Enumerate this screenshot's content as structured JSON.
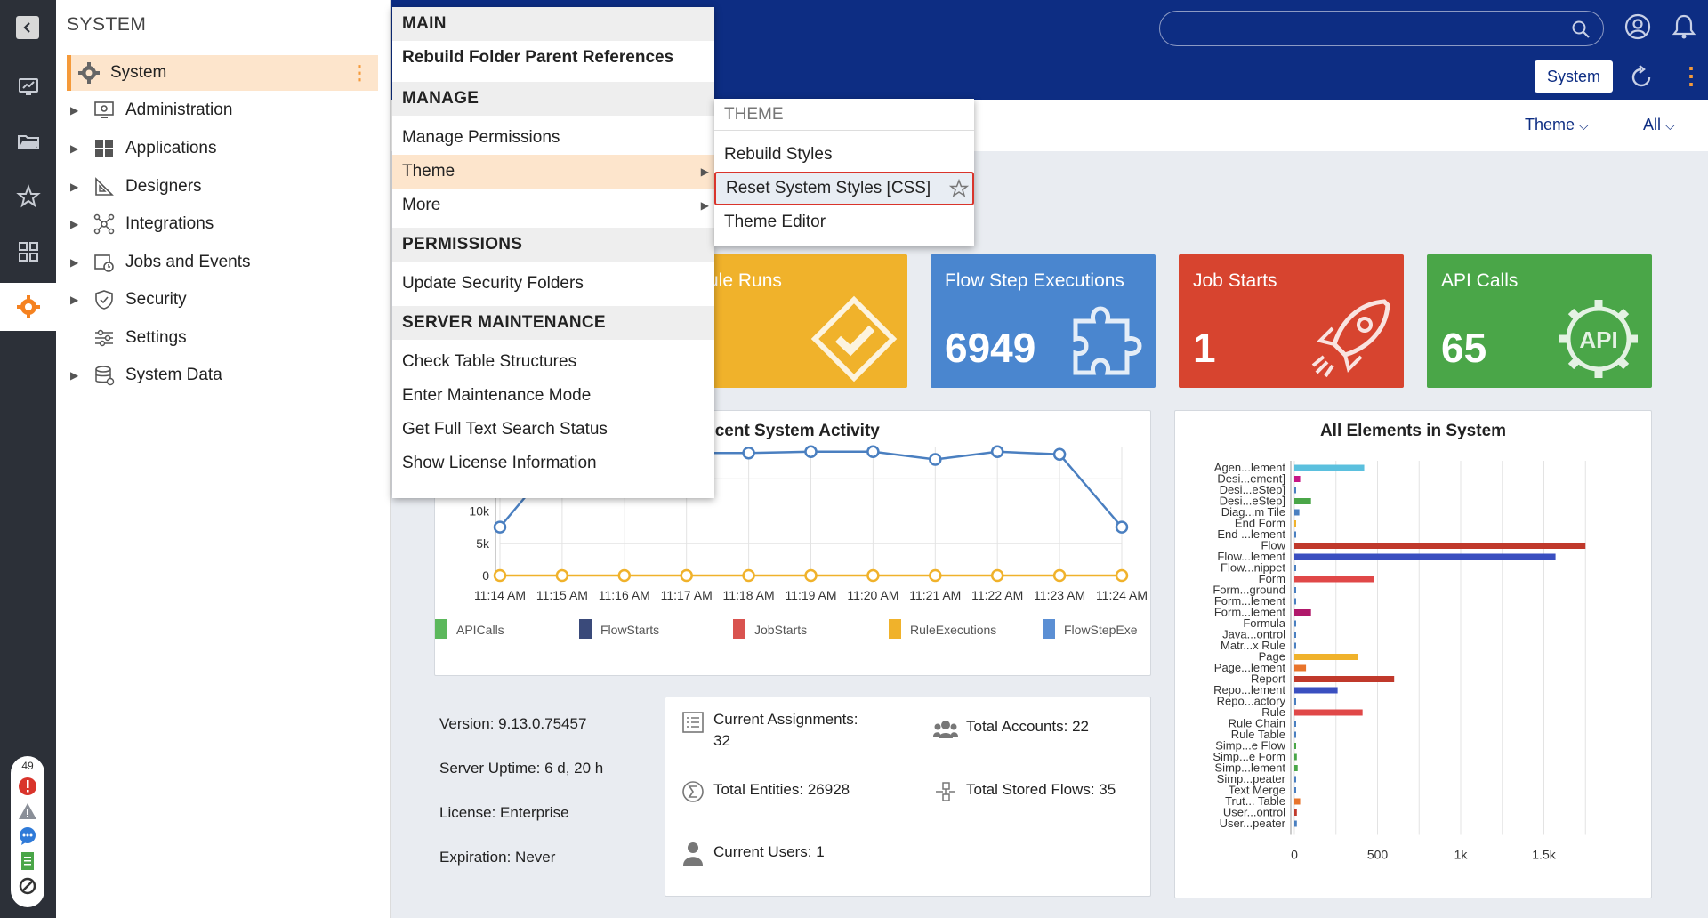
{
  "rail": {
    "status_count": "49"
  },
  "tree": {
    "title": "SYSTEM",
    "items": [
      {
        "label": "System"
      },
      {
        "label": "Administration"
      },
      {
        "label": "Applications"
      },
      {
        "label": "Designers"
      },
      {
        "label": "Integrations"
      },
      {
        "label": "Jobs and Events"
      },
      {
        "label": "Security"
      },
      {
        "label": "Settings"
      },
      {
        "label": "System Data"
      }
    ]
  },
  "header": {
    "search_placeholder": "",
    "system_button": "System",
    "theme_dropdown": "Theme",
    "all_dropdown": "All"
  },
  "context_menu": {
    "sections": [
      {
        "header": "MAIN",
        "items": [
          "Rebuild Folder Parent References"
        ]
      },
      {
        "header": "MANAGE",
        "items": [
          "Manage Permissions",
          "Theme",
          "More"
        ]
      },
      {
        "header": "PERMISSIONS",
        "items": [
          "Update Security Folders"
        ]
      },
      {
        "header": "SERVER MAINTENANCE",
        "items": [
          "Check Table Structures",
          "Enter Maintenance Mode",
          "Get Full Text Search Status",
          "Show License Information"
        ]
      }
    ]
  },
  "theme_submenu": {
    "header": "THEME",
    "items": [
      "Rebuild Styles",
      "Reset System Styles [CSS]",
      "Theme Editor"
    ]
  },
  "tiles": [
    {
      "title": "ule Runs",
      "value": "",
      "color": "#f0b22b"
    },
    {
      "title": "Flow Step Executions",
      "value": "6949",
      "color": "#4a86cf"
    },
    {
      "title": "Job Starts",
      "value": "1",
      "color": "#d7442f"
    },
    {
      "title": "API Calls",
      "value": "65",
      "color": "#4aa648"
    }
  ],
  "activity": {
    "title": "ecent System Activity"
  },
  "elements": {
    "title": "All Elements in System"
  },
  "chart_data": [
    {
      "type": "line",
      "title": "ecent System Activity",
      "x": [
        "11:14 AM",
        "11:15 AM",
        "11:16 AM",
        "11:17 AM",
        "11:18 AM",
        "11:19 AM",
        "11:20 AM",
        "11:21 AM",
        "11:22 AM",
        "11:23 AM",
        "11:24 AM"
      ],
      "yticks": [
        "0",
        "5k",
        "10k"
      ],
      "ylim": [
        0,
        20000
      ],
      "series": [
        {
          "name": "FlowStepExe",
          "color": "#4a7fc0",
          "values": [
            7500,
            19000,
            19000,
            19000,
            19000,
            19200,
            19200,
            18000,
            19200,
            18800,
            7500
          ]
        },
        {
          "name": "RuleExecutions",
          "color": "#f0b22b",
          "values": [
            0,
            0,
            0,
            0,
            0,
            0,
            0,
            0,
            0,
            0,
            0
          ]
        }
      ],
      "legend": [
        "APICalls",
        "FlowStarts",
        "JobStarts",
        "RuleExecutions",
        "FlowStepExe"
      ],
      "legend_colors": [
        "#5cb85c",
        "#3a4a7a",
        "#d9534f",
        "#f0b22b",
        "#5b8fd4"
      ]
    },
    {
      "type": "bar",
      "title": "All Elements in System",
      "orientation": "horizontal",
      "categories": [
        "Agen...lement",
        "Desi...ement]",
        "Desi...eStep]",
        "Desi...eStep]",
        "Diag...m Tile",
        "End Form",
        "End ...lement",
        "Flow",
        "Flow...lement",
        "Flow...nippet",
        "Form",
        "Form...ground",
        "Form...lement",
        "Form...lement",
        "Formula",
        "Java...ontrol",
        "Matr...x Rule",
        "Page",
        "Page...lement",
        "Report",
        "Repo...lement",
        "Repo...actory",
        "Rule",
        "Rule Chain",
        "Rule Table",
        "Simp...e Flow",
        "Simp...e Form",
        "Simp...lement",
        "Simp...peater",
        "Text Merge",
        "Trut... Table",
        "User...ontrol",
        "User...peater"
      ],
      "values": [
        420,
        35,
        5,
        100,
        30,
        5,
        5,
        1750,
        1570,
        5,
        480,
        5,
        5,
        100,
        5,
        5,
        5,
        380,
        70,
        600,
        260,
        5,
        410,
        5,
        5,
        5,
        15,
        20,
        5,
        5,
        35,
        15,
        15
      ],
      "colors": [
        "#5bc0de",
        "#c71585",
        "#4a7fc0",
        "#4aa648",
        "#4a7fc0",
        "#f0b22b",
        "#4a7fc0",
        "#c0392b",
        "#3a4fc0",
        "#4a7fc0",
        "#e04848",
        "#4a7fc0",
        "#4a7fc0",
        "#b0186a",
        "#4a7fc0",
        "#4a7fc0",
        "#4a7fc0",
        "#f0b22b",
        "#e8742b",
        "#c0392b",
        "#3a4fc0",
        "#4a7fc0",
        "#e04848",
        "#4a7fc0",
        "#4a7fc0",
        "#4aa648",
        "#4aa648",
        "#4aa648",
        "#4a7fc0",
        "#4a7fc0",
        "#e8742b",
        "#c0392b",
        "#4a7fc0"
      ],
      "xticks": [
        "0",
        "500",
        "1k",
        "1.5k"
      ],
      "xlim": [
        0,
        2000
      ]
    }
  ],
  "info": {
    "version": "Version: 9.13.0.75457",
    "uptime": "Server Uptime: 6 d, 20 h",
    "license": "License: Enterprise",
    "expiration": "Expiration: Never"
  },
  "stats": {
    "assignments_label": "Current Assignments:",
    "assignments_value": "32",
    "accounts": "Total Accounts: 22",
    "entities": "Total Entities: 26928",
    "stored_flows": "Total Stored Flows: 35",
    "users": "Current Users: 1"
  }
}
